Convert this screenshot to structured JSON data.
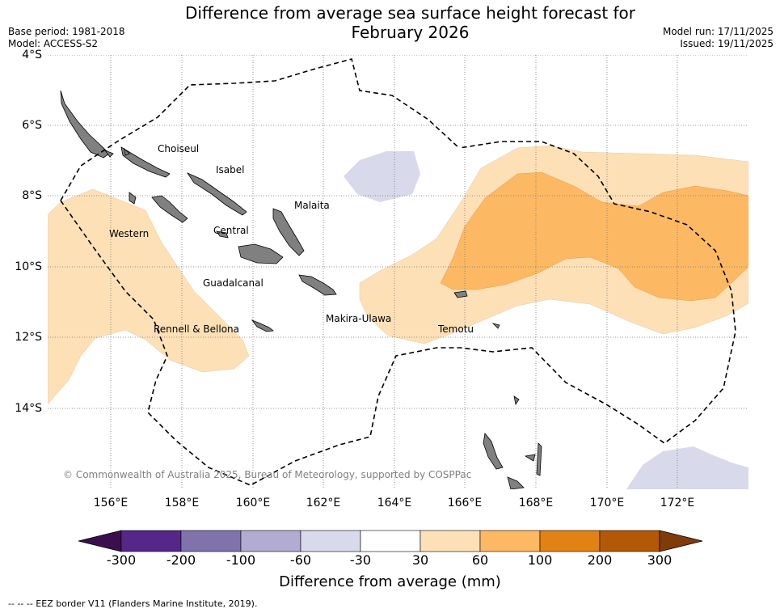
{
  "title_line1": "Difference from average sea surface height forecast for",
  "title_line2": "February 2026",
  "meta_left": {
    "base_period": "Base period: 1981-2018",
    "model": "Model: ACCESS-S2"
  },
  "meta_right": {
    "model_run": "Model run: 17/11/2025",
    "issued": "Issued: 19/11/2025"
  },
  "latitudes": [
    "4°S",
    "6°S",
    "8°S",
    "10°S",
    "12°S",
    "14°S"
  ],
  "longitudes": [
    "156°E",
    "158°E",
    "160°E",
    "162°E",
    "164°E",
    "166°E",
    "168°E",
    "170°E",
    "172°E"
  ],
  "places": [
    "Choiseul",
    "Isabel",
    "Malaita",
    "Western",
    "Central",
    "Guadalcanal",
    "Makira-Ulawa",
    "Rennell & Bellona",
    "Temotu"
  ],
  "copyright": "© Commonwealth of Australia 2025, Bureau of Meteorology, supported by COSPPac",
  "colorbar": {
    "labels": [
      "-300",
      "-200",
      "-100",
      "-60",
      "-30",
      "30",
      "60",
      "100",
      "200",
      "300"
    ],
    "colors": [
      "#3b0f4e",
      "#542788",
      "#8073ac",
      "#b2abd2",
      "#d8daeb",
      "#ffffff",
      "#fee0b6",
      "#fdb863",
      "#e08214",
      "#b35806",
      "#7f3b08"
    ],
    "title": "Difference from average (mm)"
  },
  "footnote": "--  --  -- EEZ border V11 (Flanders Marine Institute, 2019)."
}
